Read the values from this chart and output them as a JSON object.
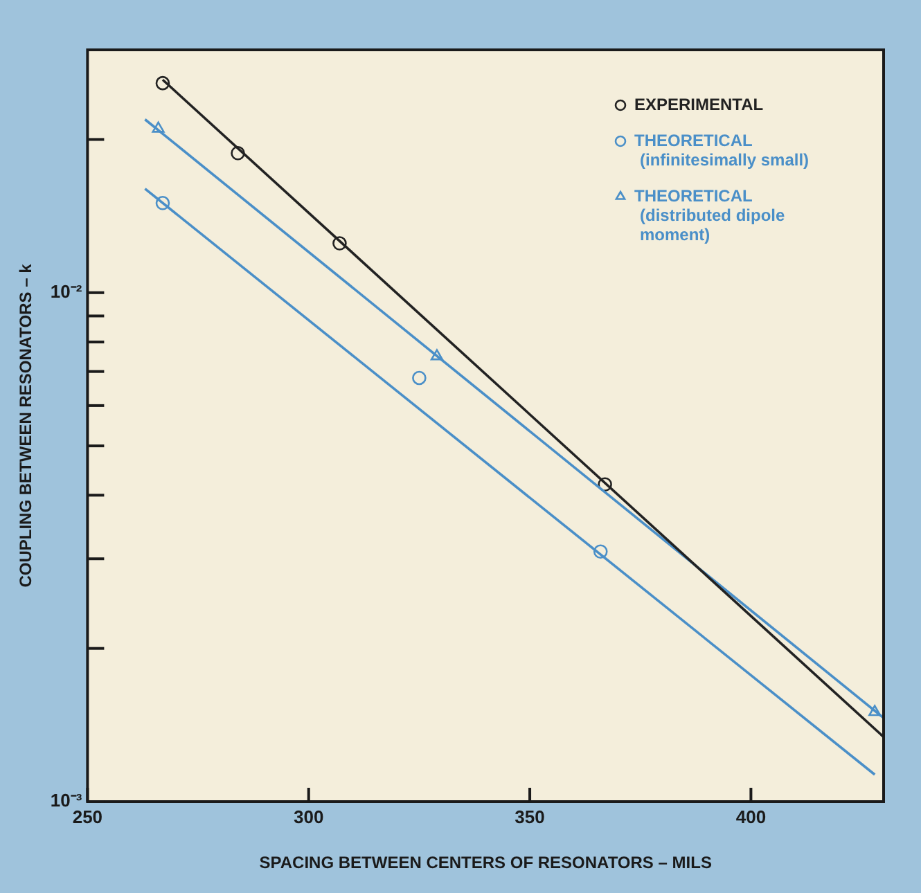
{
  "chart_data": {
    "type": "scatter",
    "xlabel": "SPACING BETWEEN CENTERS OF RESONATORS – MILS",
    "ylabel": "COUPLING BETWEEN RESONATORS – k",
    "log": "y",
    "grid": false,
    "legend": "top right",
    "xlim": [
      250,
      430
    ],
    "xticks": [
      250,
      300,
      350,
      400
    ],
    "ylim": [
      0.001,
      0.03
    ],
    "yticks": [
      {
        "value": 0.001,
        "label": "10⁻³"
      },
      {
        "value": 0.002,
        "label": null
      },
      {
        "value": 0.003,
        "label": null
      },
      {
        "value": 0.004,
        "label": null
      },
      {
        "value": 0.005,
        "label": null
      },
      {
        "value": 0.006,
        "label": null
      },
      {
        "value": 0.007,
        "label": null
      },
      {
        "value": 0.008,
        "label": null
      },
      {
        "value": 0.009,
        "label": null
      },
      {
        "value": 0.01,
        "label": "10⁻²"
      },
      {
        "value": 0.02,
        "label": null
      }
    ],
    "series": [
      {
        "type": "line",
        "marker": "none",
        "color": "#222222",
        "x": [
          267,
          430
        ],
        "values": [
          0.0262,
          0.00134
        ]
      },
      {
        "type": "line",
        "marker": "none",
        "color": "#4a8fc8",
        "x": [
          263,
          428
        ],
        "values": [
          0.016,
          0.00113
        ]
      },
      {
        "type": "line",
        "marker": "none",
        "color": "#4a8fc8",
        "x": [
          263,
          430
        ],
        "values": [
          0.0219,
          0.00146
        ]
      },
      {
        "name": "EXPERIMENTAL",
        "marker": "circle",
        "color": "#222222",
        "x": [
          267,
          284,
          307,
          367
        ],
        "values": [
          0.0258,
          0.0188,
          0.0125,
          0.0042
        ]
      },
      {
        "name": "THEORETICAL (infinitesimally small)",
        "marker": "circle",
        "color": "#4a8fc8",
        "x": [
          267,
          325,
          366
        ],
        "values": [
          0.015,
          0.0068,
          0.0031
        ]
      },
      {
        "name": "THEORETICAL (distributed dipole moment)",
        "marker": "triangle",
        "color": "#4a8fc8",
        "x": [
          266,
          329,
          428
        ],
        "values": [
          0.021,
          0.0075,
          0.0015
        ]
      }
    ]
  }
}
